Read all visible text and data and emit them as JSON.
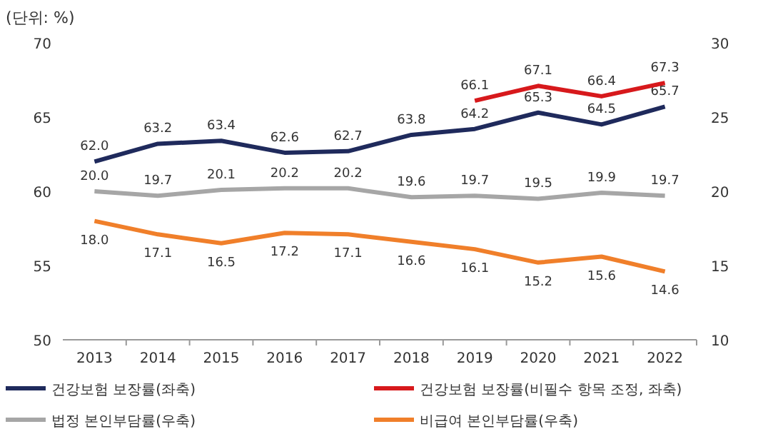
{
  "chart_data": {
    "type": "line",
    "ylabel": "(단위: %)",
    "categories": [
      "2013",
      "2014",
      "2015",
      "2016",
      "2017",
      "2018",
      "2019",
      "2020",
      "2021",
      "2022"
    ],
    "series": [
      {
        "name": "건강보험 보장률(좌축)",
        "color": "#1f2a5c",
        "values": [
          62.0,
          63.2,
          63.4,
          62.6,
          62.7,
          63.8,
          64.2,
          65.3,
          64.5,
          65.7
        ],
        "value_labels": [
          "62.0",
          "63.2",
          "63.4",
          "62.6",
          "62.7",
          "63.8",
          "64.2",
          "65.3",
          "64.5",
          "65.7"
        ]
      },
      {
        "name": "건강보험 보장률(비필수 항목 조정, 좌축)",
        "color": "#d7191c",
        "values": [
          null,
          null,
          null,
          null,
          null,
          null,
          66.1,
          67.1,
          66.4,
          67.3
        ],
        "value_labels": [
          null,
          null,
          null,
          null,
          null,
          null,
          "66.1",
          "67.1",
          "66.4",
          "67.3"
        ]
      },
      {
        "name": "법정 본인부담률(우축)",
        "color": "#a6a6a6",
        "axis": "y2",
        "values": [
          20.0,
          19.7,
          20.1,
          20.2,
          20.2,
          19.6,
          19.7,
          19.5,
          19.9,
          19.7
        ],
        "value_labels": [
          "20.0",
          "19.7",
          "20.1",
          "20.2",
          "20.2",
          "19.6",
          "19.7",
          "19.5",
          "19.9",
          "19.7"
        ]
      },
      {
        "name": "비급여 본인부담률(우축)",
        "color": "#f07f2a",
        "axis": "y2",
        "values": [
          18.0,
          17.1,
          16.5,
          17.2,
          17.1,
          16.6,
          16.1,
          15.2,
          15.6,
          14.6
        ],
        "value_labels": [
          "18.0",
          "17.1",
          "16.5",
          "17.2",
          "17.1",
          "16.6",
          "16.1",
          "15.2",
          "15.6",
          "14.6"
        ]
      }
    ],
    "ylim": [
      50,
      70
    ],
    "yticks": [
      50,
      55,
      60,
      65,
      70
    ],
    "y2lim": [
      10,
      30
    ],
    "y2ticks": [
      10,
      15,
      20,
      25,
      30
    ],
    "legend": "bottom",
    "grid": false,
    "marker": "none",
    "line_style": "solid"
  }
}
